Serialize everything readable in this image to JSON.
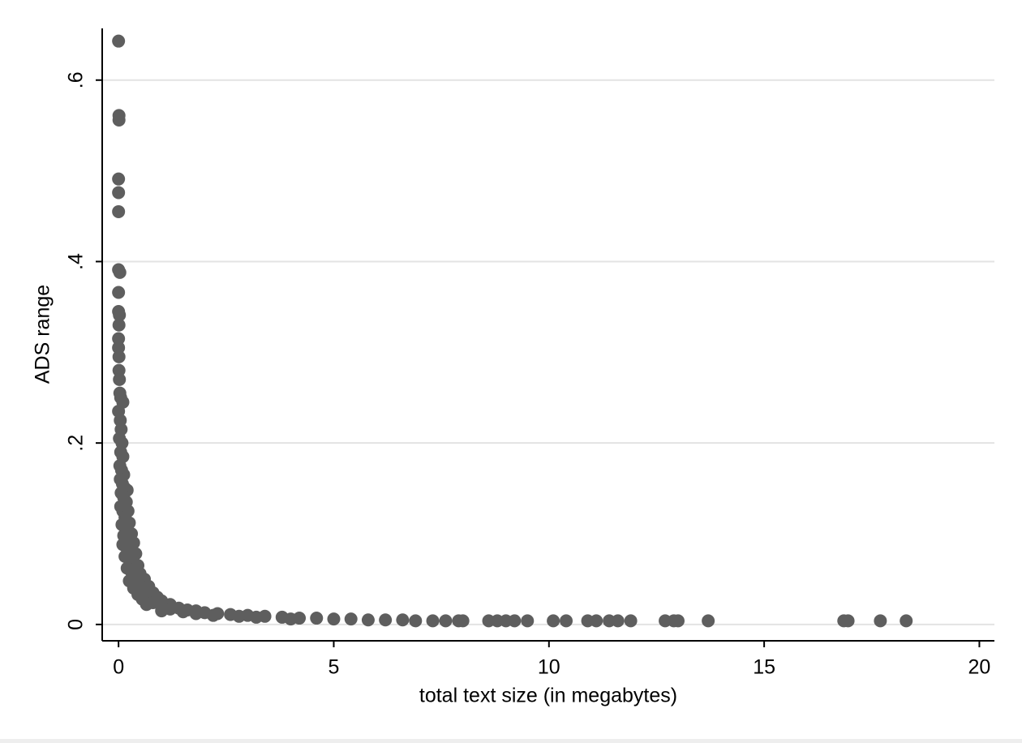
{
  "chart_data": {
    "type": "scatter",
    "x_label": "total text size (in megabytes)",
    "y_label": "ADS range",
    "color": "#5e5e5e",
    "grid": true,
    "xlim": [
      -0.38,
      20.35
    ],
    "ylim": [
      -0.018,
      0.657
    ],
    "xticks": [
      0,
      5,
      10,
      15,
      20
    ],
    "yticks": [
      0,
      {
        "value": 0.2,
        "label": ".2"
      },
      {
        "value": 0.4,
        "label": ".4"
      },
      {
        "value": 0.6,
        "label": ".6"
      }
    ],
    "x": [
      0,
      0.01,
      0.01,
      0,
      0,
      0,
      0,
      0.03,
      0,
      0,
      0.02,
      0.01,
      0,
      0,
      0.01,
      0.01,
      0.02,
      0.03,
      0.05,
      0.1,
      0,
      0.04,
      0.06,
      0.02,
      0.08,
      0.05,
      0.1,
      0.03,
      0.07,
      0.12,
      0.04,
      0.09,
      0.15,
      0.2,
      0.06,
      0.12,
      0.18,
      0.05,
      0.1,
      0.22,
      0.15,
      0.25,
      0.08,
      0.2,
      0.3,
      0.12,
      0.25,
      0.35,
      0.1,
      0.18,
      0.3,
      0.4,
      0.15,
      0.25,
      0.35,
      0.45,
      0.2,
      0.3,
      0.5,
      0.4,
      0.6,
      0.25,
      0.5,
      0.7,
      0.35,
      0.6,
      0.8,
      0.45,
      0.7,
      0.9,
      0.55,
      1.0,
      0.8,
      1.2,
      0.65,
      1.0,
      1.4,
      1.2,
      1.6,
      1.0,
      1.8,
      1.5,
      2.0,
      2.3,
      1.8,
      2.6,
      2.2,
      3.0,
      2.8,
      3.4,
      3.8,
      3.2,
      4.2,
      4.6,
      4.0,
      5.0,
      5.4,
      5.8,
      6.2,
      6.6,
      6.9,
      7.3,
      7.6,
      7.9,
      8.0,
      8.6,
      8.8,
      9.0,
      9.2,
      9.5,
      10.1,
      10.4,
      10.9,
      11.1,
      11.4,
      11.6,
      11.9,
      12.7,
      12.9,
      13.0,
      13.7,
      16.85,
      16.95,
      17.7,
      18.3
    ],
    "values": [
      0.643,
      0.561,
      0.556,
      0.491,
      0.476,
      0.455,
      0.391,
      0.388,
      0.366,
      0.345,
      0.341,
      0.33,
      0.315,
      0.305,
      0.295,
      0.28,
      0.27,
      0.255,
      0.25,
      0.245,
      0.235,
      0.225,
      0.215,
      0.205,
      0.2,
      0.19,
      0.185,
      0.175,
      0.17,
      0.165,
      0.16,
      0.155,
      0.15,
      0.148,
      0.145,
      0.14,
      0.135,
      0.13,
      0.125,
      0.125,
      0.118,
      0.112,
      0.11,
      0.105,
      0.1,
      0.098,
      0.092,
      0.09,
      0.088,
      0.085,
      0.08,
      0.078,
      0.075,
      0.072,
      0.068,
      0.065,
      0.062,
      0.058,
      0.056,
      0.052,
      0.05,
      0.048,
      0.045,
      0.042,
      0.04,
      0.038,
      0.035,
      0.033,
      0.031,
      0.03,
      0.028,
      0.026,
      0.024,
      0.022,
      0.022,
      0.02,
      0.018,
      0.017,
      0.016,
      0.015,
      0.015,
      0.014,
      0.013,
      0.012,
      0.012,
      0.011,
      0.01,
      0.01,
      0.009,
      0.009,
      0.008,
      0.008,
      0.007,
      0.007,
      0.006,
      0.006,
      0.006,
      0.005,
      0.005,
      0.005,
      0.004,
      0.004,
      0.004,
      0.004,
      0.004,
      0.004,
      0.004,
      0.004,
      0.004,
      0.004,
      0.004,
      0.004,
      0.004,
      0.004,
      0.004,
      0.004,
      0.004,
      0.004,
      0.004,
      0.004,
      0.004,
      0.004,
      0.004,
      0.004,
      0.004
    ]
  }
}
